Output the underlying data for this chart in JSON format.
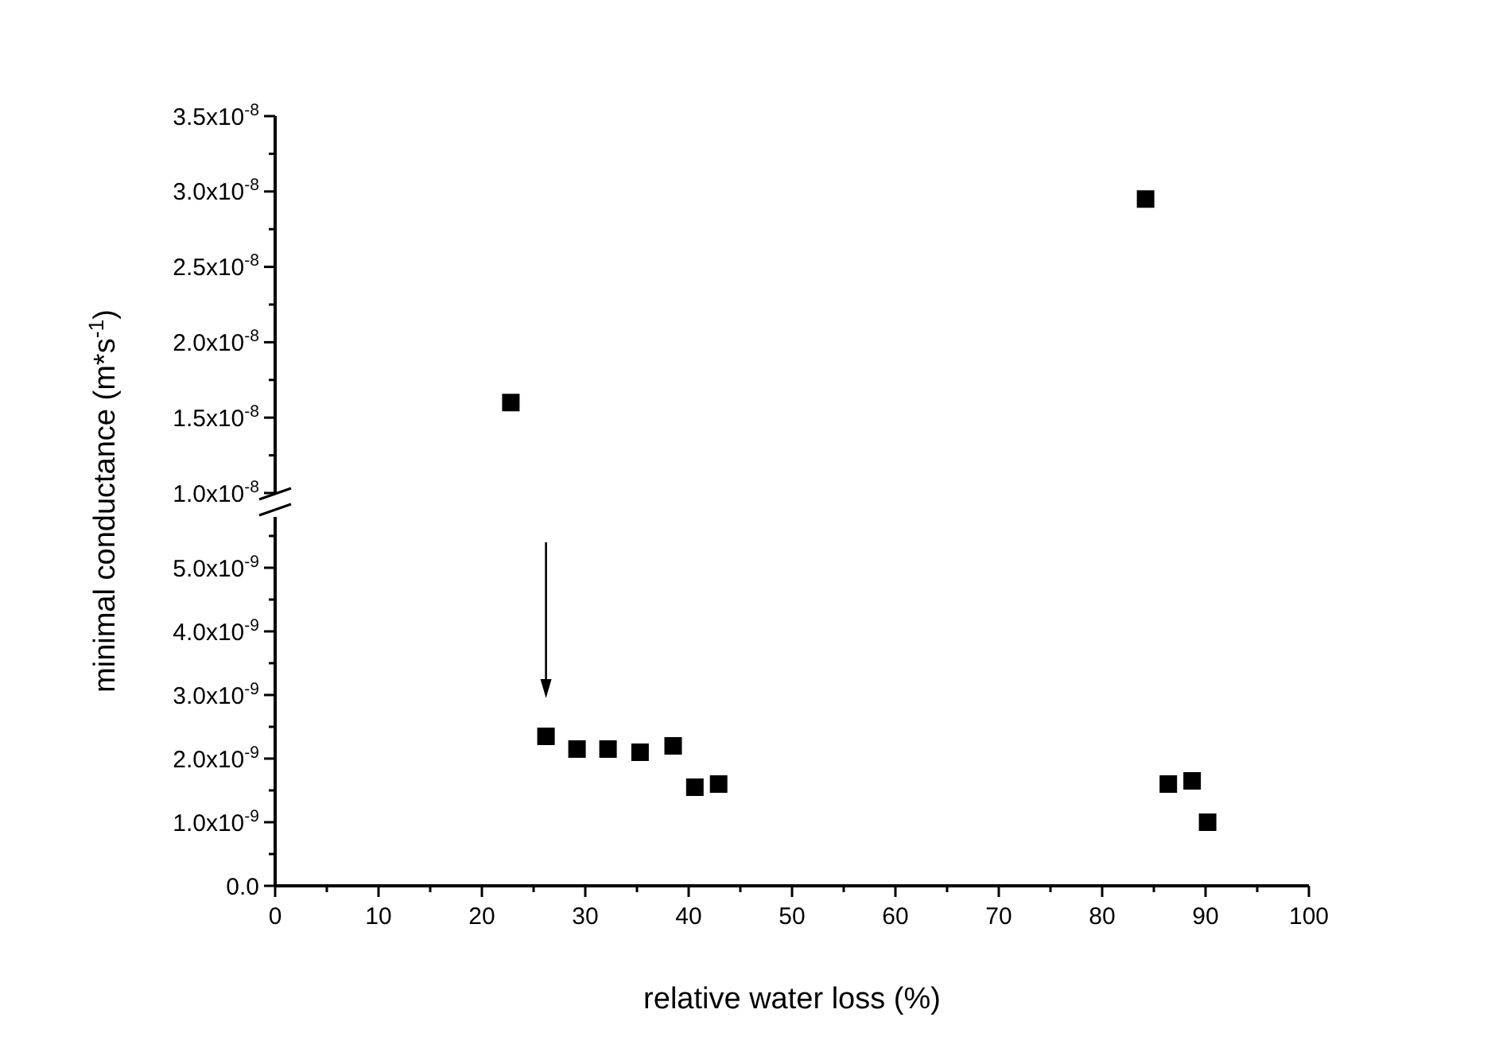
{
  "chart_data": [
    {
      "type": "scatter",
      "x": [
        22.8,
        84.2
      ],
      "values": [
        1.6e-08,
        2.95e-08
      ],
      "color": "#000000",
      "marker": "square",
      "xlim": [
        0,
        100
      ],
      "ylim": [
        1e-08,
        3.5e-08
      ],
      "tick_labels": "y",
      "yticks": [
        {
          "value": 1e-08,
          "label": "1.0x10$^{-8}$"
        },
        {
          "value": 1.25e-08,
          "label": null
        },
        {
          "value": 1.5e-08,
          "label": "1.5x10$^{-8}$"
        },
        {
          "value": 1.75e-08,
          "label": null
        },
        {
          "value": 2e-08,
          "label": "2.0x10$^{-8}$"
        },
        {
          "value": 2.25e-08,
          "label": null
        },
        {
          "value": 2.5e-08,
          "label": "2.5x10$^{-8}$"
        },
        {
          "value": 2.75e-08,
          "label": null
        },
        {
          "value": 3e-08,
          "label": "3.0x10$^{-8}$"
        },
        {
          "value": 3.25e-08,
          "label": null
        },
        {
          "value": 3.5e-08,
          "label": "3.5x10$^{-8}$"
        }
      ],
      "grid": false
    },
    {
      "type": "scatter",
      "x": [
        26.2,
        29.2,
        32.2,
        35.3,
        38.5,
        40.6,
        42.9,
        86.4,
        88.7,
        90.2
      ],
      "values": [
        2.35e-09,
        2.15e-09,
        2.15e-09,
        2.1e-09,
        2.2e-09,
        1.55e-09,
        1.6e-09,
        1.6e-09,
        1.65e-09,
        1e-09
      ],
      "color": "#000000",
      "marker": "square",
      "xlim": [
        0,
        100
      ],
      "ylim": [
        0,
        5.8e-09
      ],
      "xlabel": "relative water loss (%)",
      "ylabel": "minimal conductance (m*s$^{-1}$)",
      "xticks": [
        0,
        {
          "value": 5,
          "label": null
        },
        10,
        {
          "value": 15,
          "label": null
        },
        20,
        {
          "value": 25,
          "label": null
        },
        30,
        {
          "value": 35,
          "label": null
        },
        40,
        {
          "value": 45,
          "label": null
        },
        50,
        {
          "value": 55,
          "label": null
        },
        60,
        {
          "value": 65,
          "label": null
        },
        70,
        {
          "value": 75,
          "label": null
        },
        80,
        {
          "value": 85,
          "label": null
        },
        90,
        {
          "value": 95,
          "label": null
        },
        100
      ],
      "yticks": [
        {
          "value": 0,
          "label": "0.0"
        },
        {
          "value": 5e-10,
          "label": null
        },
        {
          "value": 1e-09,
          "label": "1.0x10$^{-9}$"
        },
        {
          "value": 1.5e-09,
          "label": null
        },
        {
          "value": 2e-09,
          "label": "2.0x10$^{-9}$"
        },
        {
          "value": 2.5e-09,
          "label": null
        },
        {
          "value": 3e-09,
          "label": "3.0x10$^{-9}$"
        },
        {
          "value": 3.5e-09,
          "label": null
        },
        {
          "value": 4e-09,
          "label": "4.0x10$^{-9}$"
        },
        {
          "value": 4.5e-09,
          "label": null
        },
        {
          "value": 5e-09,
          "label": "5.0x10$^{-9}$"
        },
        {
          "value": 5.5e-09,
          "label": null
        }
      ],
      "grid": false
    }
  ]
}
